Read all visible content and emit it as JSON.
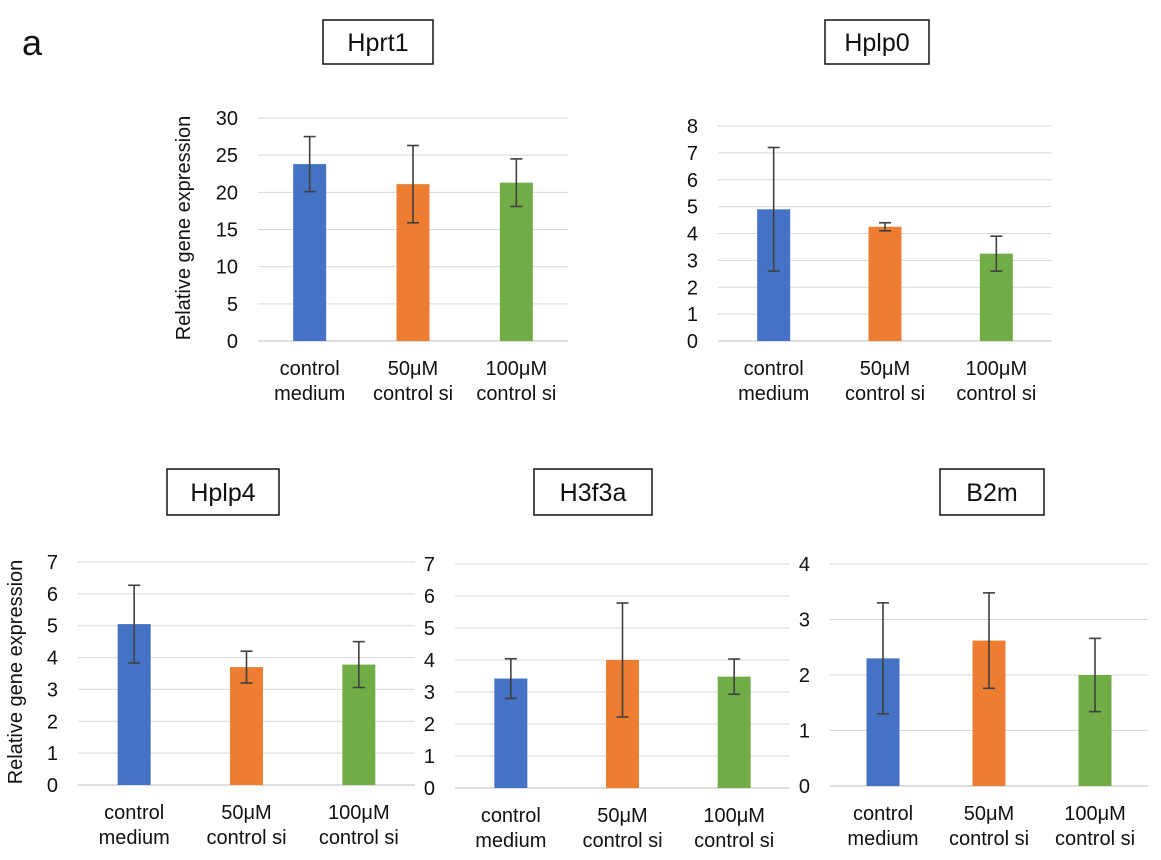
{
  "panel_label": "a",
  "colors": {
    "blue": "#4472C4",
    "orange": "#ED7D31",
    "green": "#70AD47",
    "grid": "#d9d9d9",
    "error": "#404040"
  },
  "chart_data": [
    {
      "type": "bar",
      "title": "Hprt1",
      "ylabel": "Relative gene expression",
      "categories": [
        [
          "control",
          "medium"
        ],
        [
          "50μM",
          "control si"
        ],
        [
          "100μM",
          "control si"
        ]
      ],
      "values": [
        23.8,
        21.1,
        21.3
      ],
      "error": [
        3.7,
        5.2,
        3.2
      ],
      "ylim": [
        0,
        30
      ],
      "yticks": [
        0,
        5,
        10,
        15,
        20,
        25,
        30
      ],
      "grid": true
    },
    {
      "type": "bar",
      "title": "Hplp0",
      "ylabel": "",
      "categories": [
        [
          "control",
          "medium"
        ],
        [
          "50μM",
          "control si"
        ],
        [
          "100μM",
          "control si"
        ]
      ],
      "values": [
        4.9,
        4.25,
        3.25
      ],
      "error": [
        2.3,
        0.15,
        0.65
      ],
      "ylim": [
        0,
        8
      ],
      "yticks": [
        0,
        1,
        2,
        3,
        4,
        5,
        6,
        7,
        8
      ],
      "grid": true
    },
    {
      "type": "bar",
      "title": "Hplp4",
      "ylabel": "Relative gene expression",
      "categories": [
        [
          "control",
          "medium"
        ],
        [
          "50μM",
          "control si"
        ],
        [
          "100μM",
          "control si"
        ]
      ],
      "values": [
        5.05,
        3.7,
        3.78
      ],
      "error": [
        1.22,
        0.5,
        0.72
      ],
      "ylim": [
        0,
        7
      ],
      "yticks": [
        0,
        1,
        2,
        3,
        4,
        5,
        6,
        7
      ],
      "grid": true
    },
    {
      "type": "bar",
      "title": "H3f3a",
      "ylabel": "",
      "categories": [
        [
          "control",
          "medium"
        ],
        [
          "50μM",
          "control si"
        ],
        [
          "100μM",
          "control si"
        ]
      ],
      "values": [
        3.42,
        4.0,
        3.48
      ],
      "error": [
        0.62,
        1.78,
        0.55
      ],
      "ylim": [
        0,
        7
      ],
      "yticks": [
        0,
        1,
        2,
        3,
        4,
        5,
        6,
        7
      ],
      "grid": true
    },
    {
      "type": "bar",
      "title": "B2m",
      "ylabel": "",
      "categories": [
        [
          "control",
          "medium"
        ],
        [
          "50μM",
          "control si"
        ],
        [
          "100μM",
          "control si"
        ]
      ],
      "values": [
        2.3,
        2.62,
        2.0
      ],
      "error": [
        1.0,
        0.86,
        0.66
      ],
      "ylim": [
        0,
        4
      ],
      "yticks": [
        0,
        1,
        2,
        3,
        4
      ],
      "grid": true
    }
  ]
}
